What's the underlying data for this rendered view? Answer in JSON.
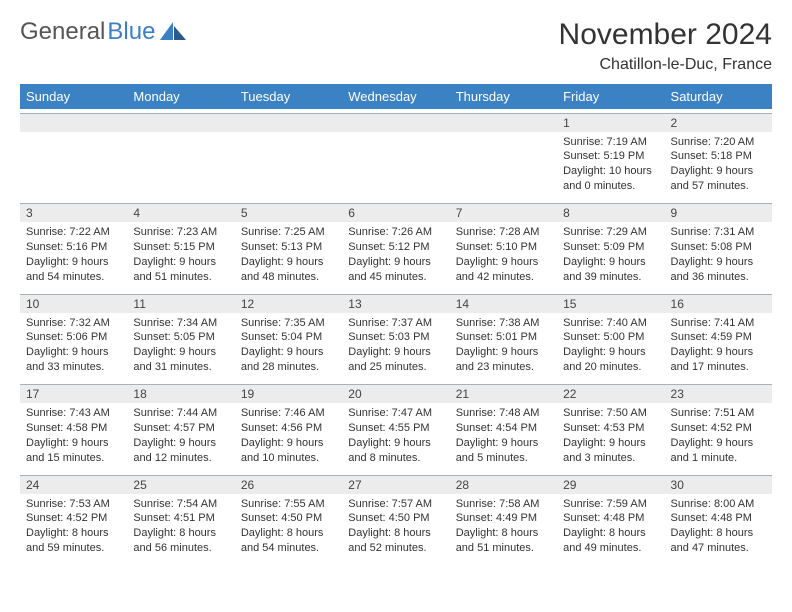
{
  "brand": {
    "part1": "General",
    "part2": "Blue"
  },
  "title": "November 2024",
  "location": "Chatillon-le-Duc, France",
  "colors": {
    "header_bg": "#3b82c4",
    "header_text": "#ffffff",
    "daynum_bg": "#ececec",
    "daynum_border": "#a8b0b8",
    "text": "#333333",
    "brand_gray": "#555555",
    "brand_blue": "#3b7fc4"
  },
  "weekdays": [
    "Sunday",
    "Monday",
    "Tuesday",
    "Wednesday",
    "Thursday",
    "Friday",
    "Saturday"
  ],
  "weeks": [
    [
      null,
      null,
      null,
      null,
      null,
      {
        "n": "1",
        "sr": "7:19 AM",
        "ss": "5:19 PM",
        "dl": "10 hours and 0 minutes."
      },
      {
        "n": "2",
        "sr": "7:20 AM",
        "ss": "5:18 PM",
        "dl": "9 hours and 57 minutes."
      }
    ],
    [
      {
        "n": "3",
        "sr": "7:22 AM",
        "ss": "5:16 PM",
        "dl": "9 hours and 54 minutes."
      },
      {
        "n": "4",
        "sr": "7:23 AM",
        "ss": "5:15 PM",
        "dl": "9 hours and 51 minutes."
      },
      {
        "n": "5",
        "sr": "7:25 AM",
        "ss": "5:13 PM",
        "dl": "9 hours and 48 minutes."
      },
      {
        "n": "6",
        "sr": "7:26 AM",
        "ss": "5:12 PM",
        "dl": "9 hours and 45 minutes."
      },
      {
        "n": "7",
        "sr": "7:28 AM",
        "ss": "5:10 PM",
        "dl": "9 hours and 42 minutes."
      },
      {
        "n": "8",
        "sr": "7:29 AM",
        "ss": "5:09 PM",
        "dl": "9 hours and 39 minutes."
      },
      {
        "n": "9",
        "sr": "7:31 AM",
        "ss": "5:08 PM",
        "dl": "9 hours and 36 minutes."
      }
    ],
    [
      {
        "n": "10",
        "sr": "7:32 AM",
        "ss": "5:06 PM",
        "dl": "9 hours and 33 minutes."
      },
      {
        "n": "11",
        "sr": "7:34 AM",
        "ss": "5:05 PM",
        "dl": "9 hours and 31 minutes."
      },
      {
        "n": "12",
        "sr": "7:35 AM",
        "ss": "5:04 PM",
        "dl": "9 hours and 28 minutes."
      },
      {
        "n": "13",
        "sr": "7:37 AM",
        "ss": "5:03 PM",
        "dl": "9 hours and 25 minutes."
      },
      {
        "n": "14",
        "sr": "7:38 AM",
        "ss": "5:01 PM",
        "dl": "9 hours and 23 minutes."
      },
      {
        "n": "15",
        "sr": "7:40 AM",
        "ss": "5:00 PM",
        "dl": "9 hours and 20 minutes."
      },
      {
        "n": "16",
        "sr": "7:41 AM",
        "ss": "4:59 PM",
        "dl": "9 hours and 17 minutes."
      }
    ],
    [
      {
        "n": "17",
        "sr": "7:43 AM",
        "ss": "4:58 PM",
        "dl": "9 hours and 15 minutes."
      },
      {
        "n": "18",
        "sr": "7:44 AM",
        "ss": "4:57 PM",
        "dl": "9 hours and 12 minutes."
      },
      {
        "n": "19",
        "sr": "7:46 AM",
        "ss": "4:56 PM",
        "dl": "9 hours and 10 minutes."
      },
      {
        "n": "20",
        "sr": "7:47 AM",
        "ss": "4:55 PM",
        "dl": "9 hours and 8 minutes."
      },
      {
        "n": "21",
        "sr": "7:48 AM",
        "ss": "4:54 PM",
        "dl": "9 hours and 5 minutes."
      },
      {
        "n": "22",
        "sr": "7:50 AM",
        "ss": "4:53 PM",
        "dl": "9 hours and 3 minutes."
      },
      {
        "n": "23",
        "sr": "7:51 AM",
        "ss": "4:52 PM",
        "dl": "9 hours and 1 minute."
      }
    ],
    [
      {
        "n": "24",
        "sr": "7:53 AM",
        "ss": "4:52 PM",
        "dl": "8 hours and 59 minutes."
      },
      {
        "n": "25",
        "sr": "7:54 AM",
        "ss": "4:51 PM",
        "dl": "8 hours and 56 minutes."
      },
      {
        "n": "26",
        "sr": "7:55 AM",
        "ss": "4:50 PM",
        "dl": "8 hours and 54 minutes."
      },
      {
        "n": "27",
        "sr": "7:57 AM",
        "ss": "4:50 PM",
        "dl": "8 hours and 52 minutes."
      },
      {
        "n": "28",
        "sr": "7:58 AM",
        "ss": "4:49 PM",
        "dl": "8 hours and 51 minutes."
      },
      {
        "n": "29",
        "sr": "7:59 AM",
        "ss": "4:48 PM",
        "dl": "8 hours and 49 minutes."
      },
      {
        "n": "30",
        "sr": "8:00 AM",
        "ss": "4:48 PM",
        "dl": "8 hours and 47 minutes."
      }
    ]
  ],
  "labels": {
    "sunrise": "Sunrise: ",
    "sunset": "Sunset: ",
    "daylight": "Daylight: "
  }
}
